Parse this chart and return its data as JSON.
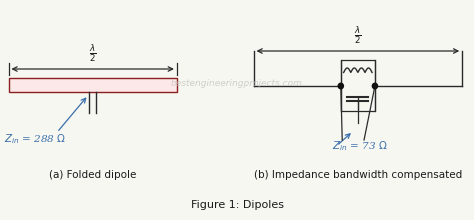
{
  "title": "Figure 1: Dipoles",
  "label_a": "(a) Folded dipole",
  "label_b": "(b) Impedance bandwidth compensated",
  "bg_color": "#f7f7f2",
  "antenna_color": "#8B2020",
  "line_color": "#2a2a2a",
  "arrow_color": "#3a6eaa",
  "text_color": "#1a1a1a",
  "rect_fill": "#fce8e8",
  "watermark": "bestengineeringprojects.com"
}
